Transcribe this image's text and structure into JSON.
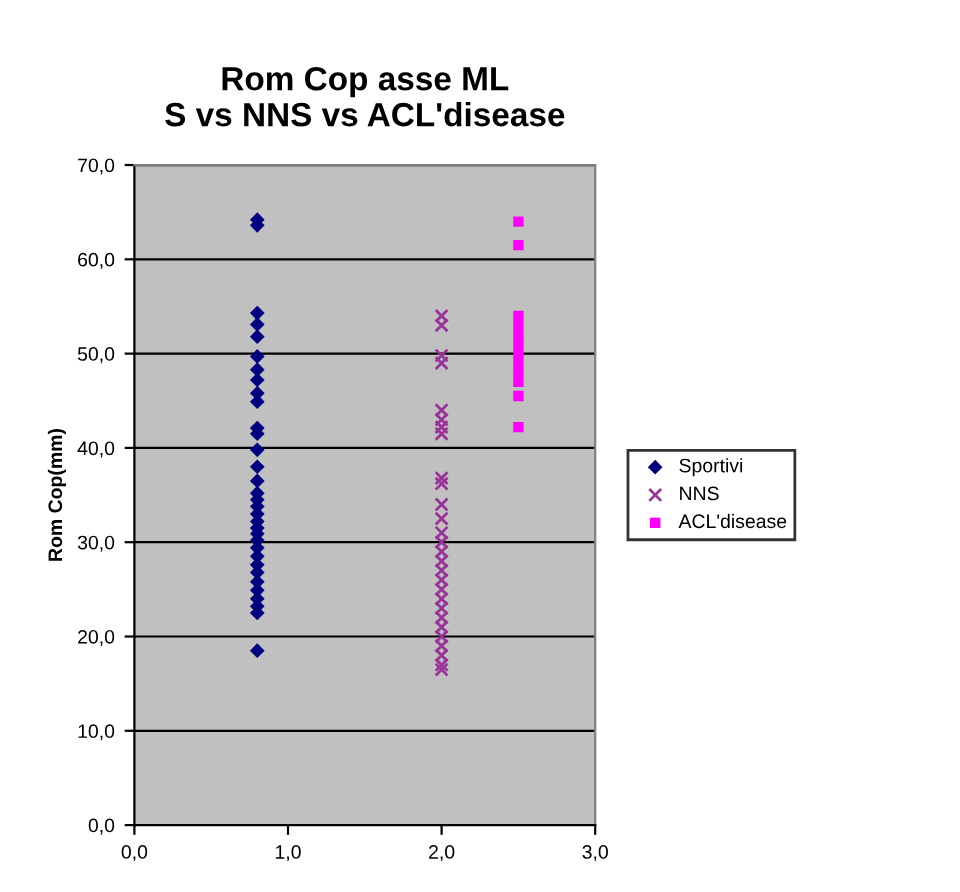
{
  "chart_data": {
    "type": "scatter",
    "title": "Rom Cop asse ML\nS vs NNS vs ACL'disease",
    "ylabel": "Rom Cop(mm)",
    "xlim": [
      0,
      3
    ],
    "xticks": [
      {
        "value": 0,
        "label": "0,0"
      },
      {
        "value": 1,
        "label": "1,0"
      },
      {
        "value": 2,
        "label": "2,0"
      },
      {
        "value": 3,
        "label": "3,0"
      }
    ],
    "ylim": [
      0,
      70
    ],
    "yticks": [
      {
        "value": 0,
        "label": "0,0"
      },
      {
        "value": 10,
        "label": "10,0"
      },
      {
        "value": 20,
        "label": "20,0"
      },
      {
        "value": 30,
        "label": "30,0"
      },
      {
        "value": 40,
        "label": "40,0"
      },
      {
        "value": 50,
        "label": "50,0"
      },
      {
        "value": 60,
        "label": "60,0"
      },
      {
        "value": 70,
        "label": "70,0"
      }
    ],
    "grid": "y",
    "legend": "right",
    "series": [
      {
        "name": "Sportivi",
        "color": "#000080",
        "marker": "diamond",
        "x": [
          0.8,
          0.8,
          0.8,
          0.8,
          0.8,
          0.8,
          0.8,
          0.8,
          0.8,
          0.8,
          0.8,
          0.8,
          0.8,
          0.8,
          0.8,
          0.8,
          0.8,
          0.8,
          0.8,
          0.8,
          0.8,
          0.8,
          0.8,
          0.8,
          0.8,
          0.8,
          0.8,
          0.8,
          0.8,
          0.8,
          0.8,
          0.8,
          0.8
        ],
        "values": [
          64.2,
          63.6,
          54.3,
          53.1,
          51.8,
          49.7,
          48.3,
          47.2,
          45.8,
          44.9,
          42.1,
          41.5,
          39.8,
          38.0,
          36.5,
          35.2,
          34.5,
          33.8,
          33.0,
          32.2,
          31.5,
          30.9,
          30.2,
          29.4,
          28.5,
          27.6,
          26.8,
          25.8,
          24.9,
          24.0,
          23.2,
          22.5,
          18.5
        ]
      },
      {
        "name": "NNS",
        "color": "#993399",
        "marker": "cross",
        "x": [
          2,
          2,
          2,
          2,
          2,
          2,
          2,
          2,
          2,
          2,
          2,
          2,
          2,
          2,
          2,
          2,
          2,
          2,
          2,
          2,
          2,
          2,
          2,
          2,
          2,
          2,
          2,
          2
        ],
        "values": [
          54.0,
          53.0,
          49.8,
          49.0,
          44.0,
          43.0,
          42.2,
          41.5,
          36.8,
          36.2,
          34.0,
          32.5,
          31.0,
          30.0,
          29.0,
          28.0,
          27.0,
          26.0,
          25.0,
          24.0,
          23.0,
          22.0,
          21.0,
          20.0,
          19.0,
          18.0,
          17.0,
          16.5
        ]
      },
      {
        "name": "ACL'disease",
        "color": "#ff00ff",
        "marker": "square",
        "x": [
          2.5,
          2.5,
          2.5,
          2.5,
          2.5,
          2.5,
          2.5,
          2.5,
          2.5,
          2.5,
          2.5,
          2.5
        ],
        "values": [
          64.0,
          61.5,
          54.0,
          53.0,
          52.0,
          51.0,
          50.0,
          49.0,
          48.0,
          47.0,
          45.5,
          42.2
        ]
      }
    ]
  }
}
